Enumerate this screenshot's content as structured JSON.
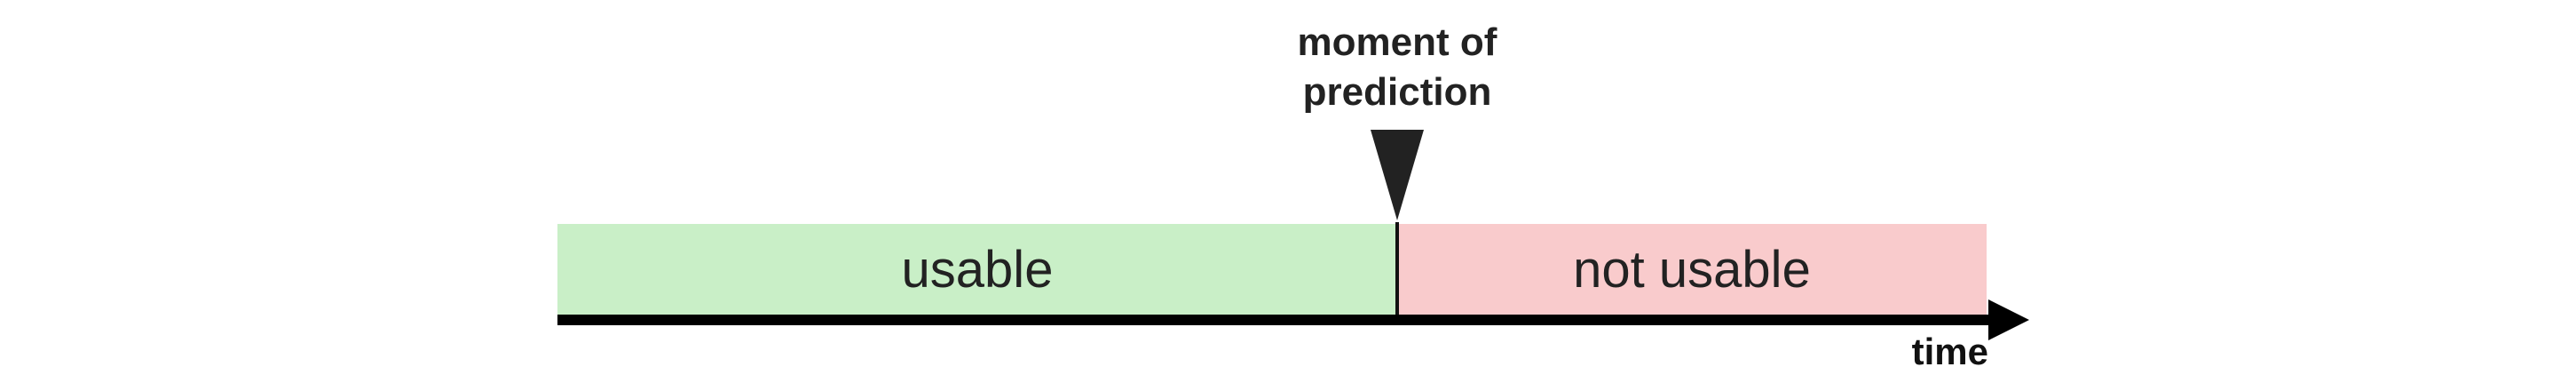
{
  "regions": [
    {
      "label": "usable",
      "color": "#c9efc7"
    },
    {
      "label": "not usable",
      "color": "#f9cbcc"
    }
  ],
  "marker": {
    "line1": "moment of",
    "line2": "prediction",
    "color": "#222222"
  },
  "axis": {
    "label": "time",
    "color": "#000000"
  }
}
